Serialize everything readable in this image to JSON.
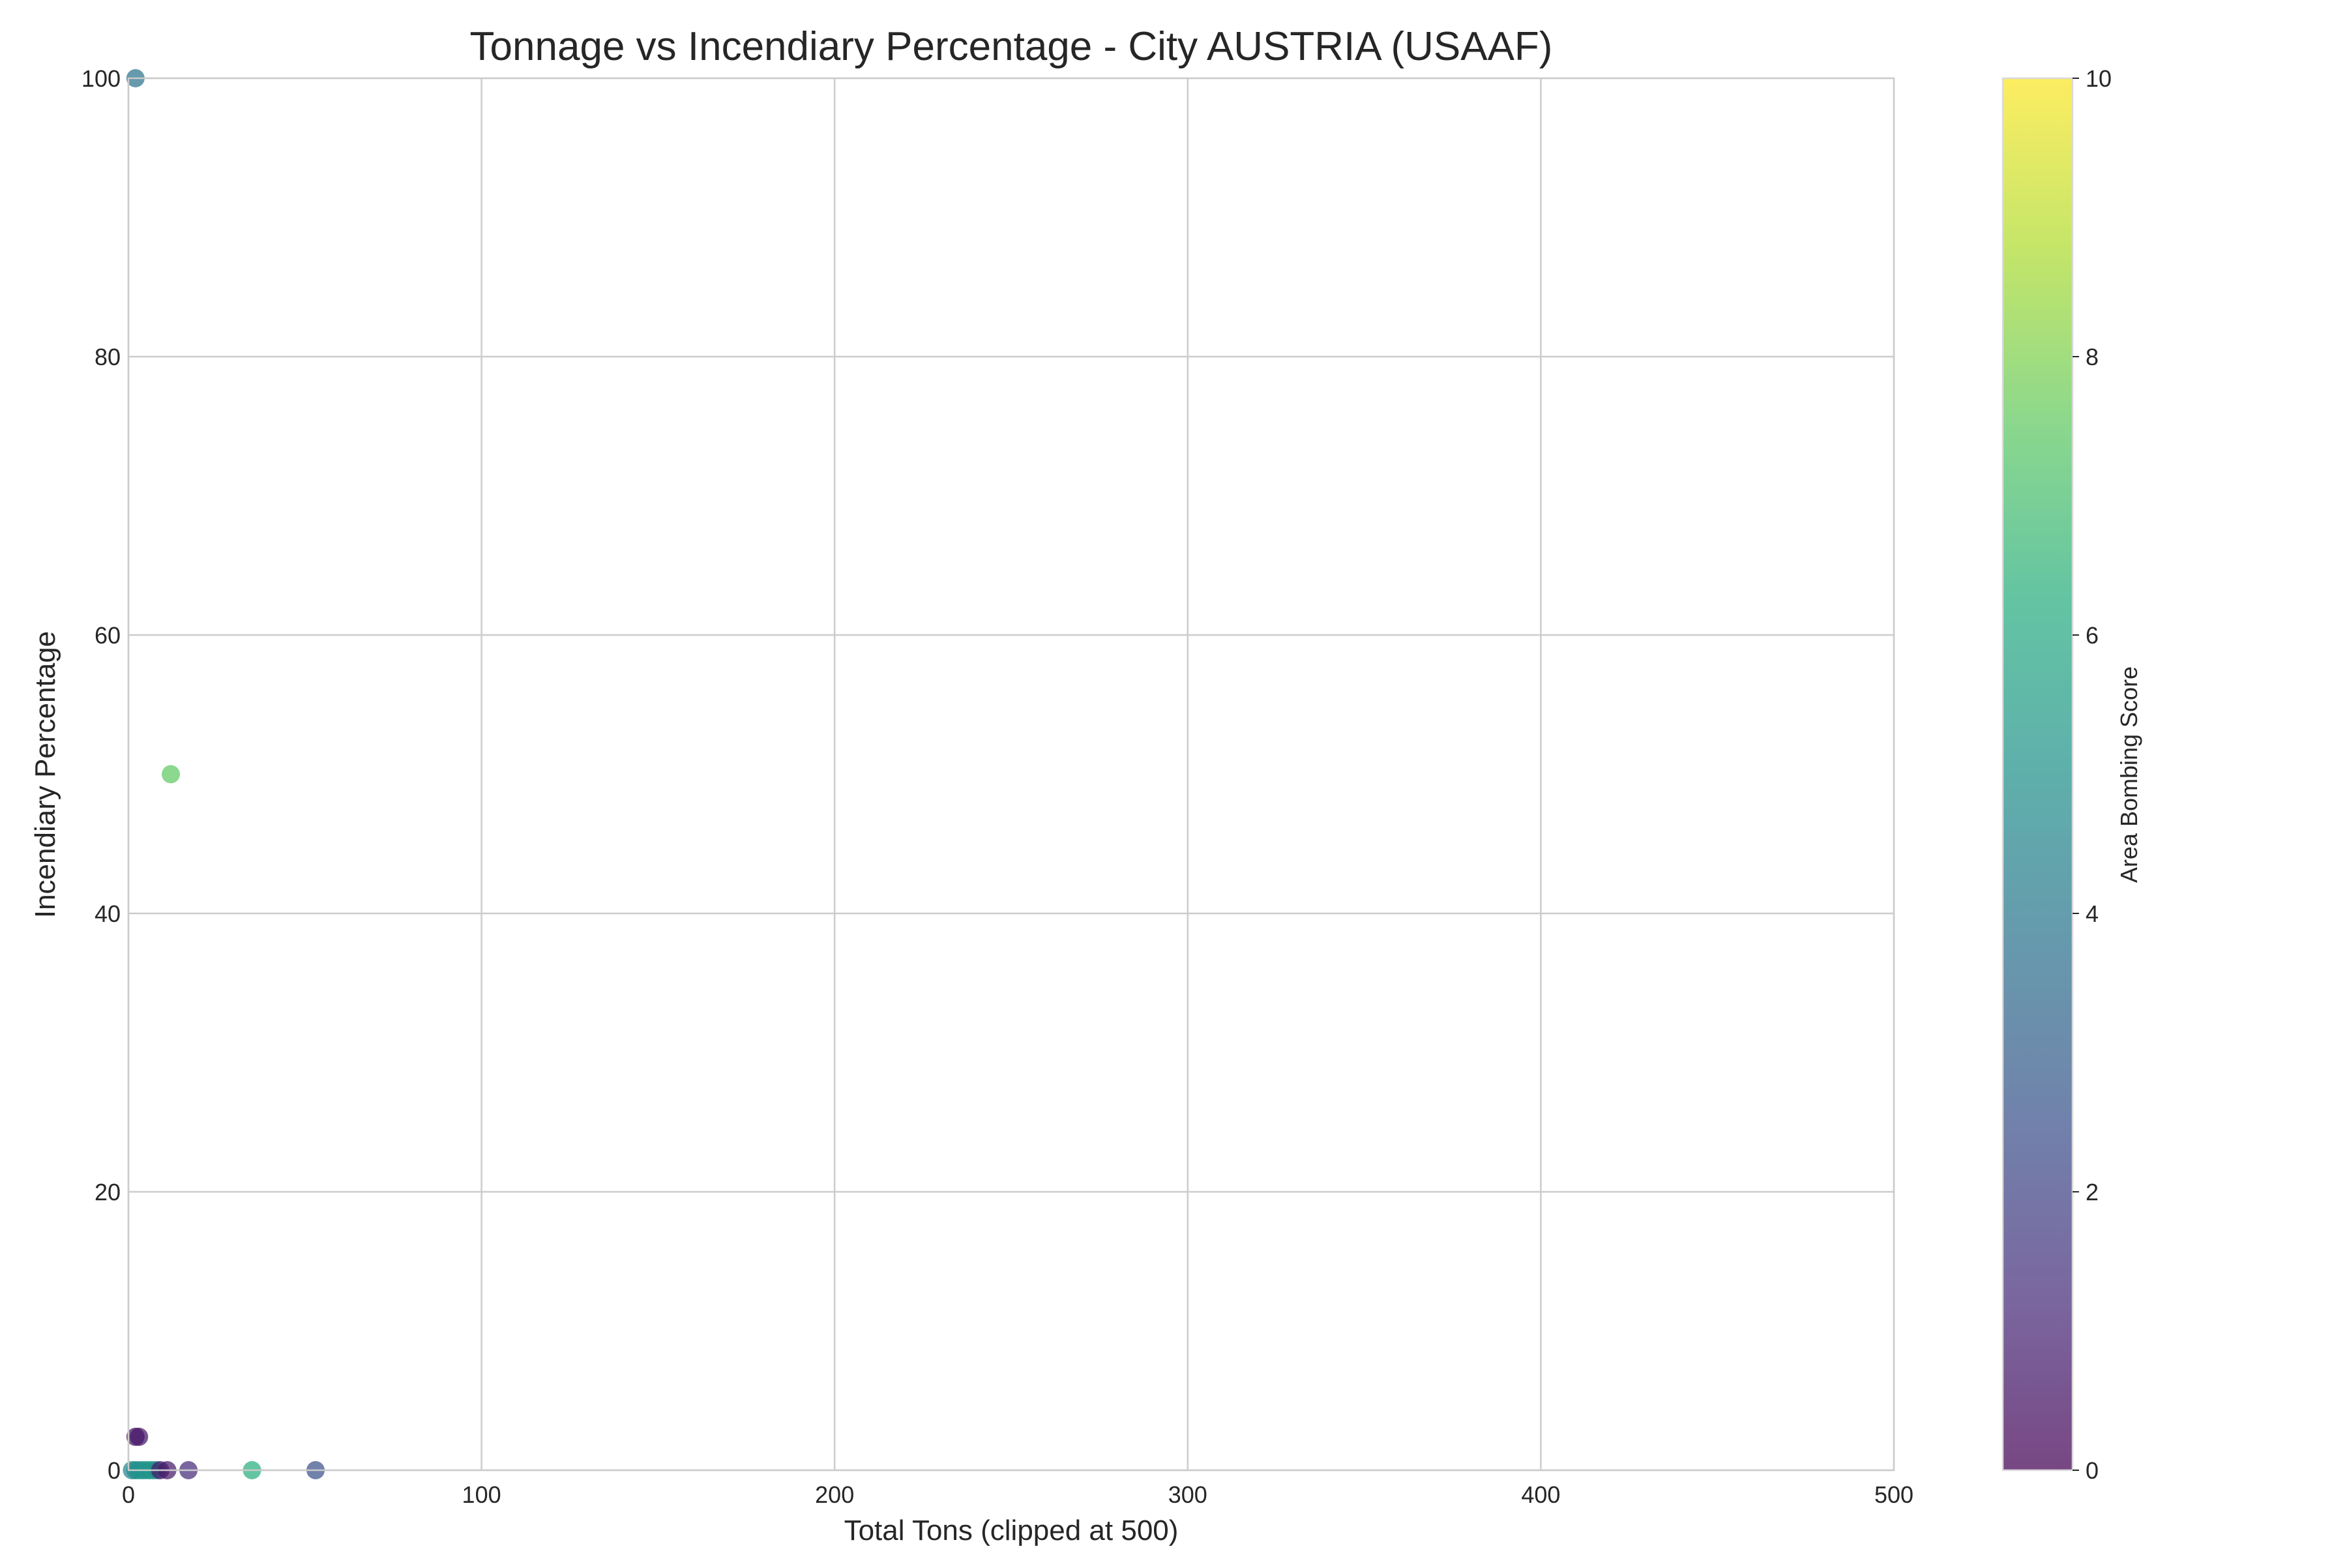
{
  "chart_data": {
    "type": "scatter",
    "title": "Tonnage vs Incendiary Percentage - City AUSTRIA (USAAF)",
    "xlabel": "Total Tons (clipped at 500)",
    "ylabel": "Incendiary Percentage",
    "xlim": [
      0,
      500
    ],
    "ylim": [
      0,
      100
    ],
    "xticks": [
      0,
      100,
      200,
      300,
      400,
      500
    ],
    "yticks": [
      0,
      20,
      40,
      60,
      80,
      100
    ],
    "grid": true,
    "colorbar": {
      "label": "Area Bombing Score",
      "range": [
        0,
        10
      ],
      "ticks": [
        0,
        2,
        4,
        6,
        8,
        10
      ],
      "colormap": "viridis"
    },
    "points": [
      {
        "x": 2,
        "y": 100,
        "c": 3.8
      },
      {
        "x": 12,
        "y": 50,
        "c": 7.5
      },
      {
        "x": 2,
        "y": 2.4,
        "c": 0.5
      },
      {
        "x": 3,
        "y": 2.4,
        "c": 0.6
      },
      {
        "x": 1,
        "y": 0,
        "c": 4.5
      },
      {
        "x": 2,
        "y": 0,
        "c": 4.8
      },
      {
        "x": 3,
        "y": 0,
        "c": 5.0
      },
      {
        "x": 4,
        "y": 0,
        "c": 5.0
      },
      {
        "x": 5,
        "y": 0,
        "c": 5.2
      },
      {
        "x": 6,
        "y": 0,
        "c": 5.0
      },
      {
        "x": 7,
        "y": 0,
        "c": 5.3
      },
      {
        "x": 8,
        "y": 0,
        "c": 4.8
      },
      {
        "x": 9,
        "y": 0,
        "c": 0.8
      },
      {
        "x": 11,
        "y": 0,
        "c": 0.7
      },
      {
        "x": 17,
        "y": 0,
        "c": 1.2
      },
      {
        "x": 35,
        "y": 0,
        "c": 6.3
      },
      {
        "x": 53,
        "y": 0,
        "c": 2.5
      }
    ]
  }
}
